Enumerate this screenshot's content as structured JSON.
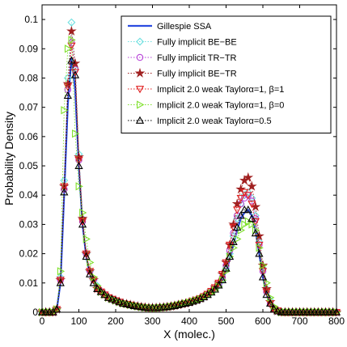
{
  "chart_data": {
    "type": "line",
    "xlabel": "X (molec.)",
    "ylabel": "Probability Density",
    "xlim": [
      0,
      800
    ],
    "ylim": [
      0,
      0.105
    ],
    "xticks": [
      "0",
      "100",
      "200",
      "300",
      "400",
      "500",
      "600",
      "700",
      "800"
    ],
    "yticks": [
      "0",
      "0.01",
      "0.02",
      "0.03",
      "0.04",
      "0.05",
      "0.06",
      "0.07",
      "0.08",
      "0.09",
      "0.1"
    ],
    "grid": false,
    "legend_position": "top-right",
    "x": [
      0,
      10,
      20,
      30,
      40,
      50,
      60,
      70,
      80,
      90,
      100,
      110,
      120,
      130,
      140,
      150,
      160,
      170,
      180,
      190,
      200,
      210,
      220,
      230,
      240,
      250,
      260,
      270,
      280,
      290,
      300,
      310,
      320,
      330,
      340,
      350,
      360,
      370,
      380,
      390,
      400,
      410,
      420,
      430,
      440,
      450,
      460,
      470,
      480,
      490,
      500,
      510,
      520,
      530,
      540,
      550,
      560,
      570,
      580,
      590,
      600,
      610,
      620,
      630,
      640,
      650,
      660,
      670,
      680,
      690,
      700,
      710,
      720,
      730,
      740,
      750,
      760,
      770,
      780,
      790,
      800
    ],
    "series": [
      {
        "name": "Gillespie SSA",
        "color": "#2b4ce0",
        "marker": "none",
        "values": [
          0,
          0,
          0,
          0,
          0.001,
          0.01,
          0.04,
          0.071,
          0.087,
          0.076,
          0.05,
          0.03,
          0.019,
          0.013,
          0.01,
          0.008,
          0.007,
          0.006,
          0.005,
          0.0045,
          0.004,
          0.0035,
          0.003,
          0.0028,
          0.0025,
          0.0022,
          0.002,
          0.0018,
          0.0017,
          0.0016,
          0.0015,
          0.0015,
          0.0016,
          0.0017,
          0.0018,
          0.002,
          0.0022,
          0.0025,
          0.0028,
          0.003,
          0.0033,
          0.0037,
          0.004,
          0.0045,
          0.005,
          0.0057,
          0.0065,
          0.0075,
          0.009,
          0.011,
          0.014,
          0.018,
          0.023,
          0.028,
          0.032,
          0.034,
          0.035,
          0.033,
          0.028,
          0.02,
          0.012,
          0.006,
          0.003,
          0.001,
          0.0005,
          0,
          0,
          0,
          0,
          0,
          0,
          0,
          0,
          0,
          0,
          0,
          0,
          0,
          0,
          0,
          0
        ]
      },
      {
        "name": "Fully implicit BE−BE",
        "color": "#6fe0e0",
        "marker": "diamond",
        "values": [
          0,
          0,
          0,
          0,
          0.001,
          0.012,
          0.045,
          0.08,
          0.099,
          0.083,
          0.054,
          0.032,
          0.02,
          0.014,
          0.011,
          0.009,
          0.007,
          0.006,
          0.005,
          0.0045,
          0.004,
          0.0035,
          0.003,
          0.0028,
          0.0024,
          0.0021,
          0.0019,
          0.0017,
          0.0016,
          0.0015,
          0.0014,
          0.0014,
          0.0015,
          0.0016,
          0.0017,
          0.0019,
          0.0021,
          0.0024,
          0.0027,
          0.003,
          0.0033,
          0.0037,
          0.0041,
          0.0046,
          0.0052,
          0.006,
          0.0068,
          0.0078,
          0.0092,
          0.011,
          0.015,
          0.02,
          0.026,
          0.032,
          0.037,
          0.04,
          0.041,
          0.039,
          0.033,
          0.024,
          0.015,
          0.008,
          0.004,
          0.0015,
          0.0005,
          0,
          0,
          0,
          0,
          0,
          0,
          0,
          0,
          0,
          0,
          0,
          0,
          0,
          0,
          0,
          0
        ]
      },
      {
        "name": "Fully implicit TR−TR",
        "color": "#b844d8",
        "marker": "circle",
        "values": [
          0,
          0,
          0,
          0,
          0.001,
          0.011,
          0.042,
          0.076,
          0.092,
          0.083,
          0.052,
          0.031,
          0.02,
          0.014,
          0.011,
          0.008,
          0.007,
          0.006,
          0.005,
          0.0045,
          0.004,
          0.0035,
          0.003,
          0.0028,
          0.0025,
          0.0022,
          0.002,
          0.0018,
          0.0016,
          0.0015,
          0.0015,
          0.0015,
          0.0016,
          0.0017,
          0.0018,
          0.002,
          0.0022,
          0.0025,
          0.0028,
          0.003,
          0.0034,
          0.0038,
          0.0042,
          0.0047,
          0.0053,
          0.006,
          0.007,
          0.008,
          0.0095,
          0.012,
          0.016,
          0.021,
          0.027,
          0.033,
          0.037,
          0.039,
          0.04,
          0.038,
          0.032,
          0.023,
          0.014,
          0.007,
          0.003,
          0.001,
          0.0005,
          0,
          0,
          0,
          0,
          0,
          0,
          0,
          0,
          0,
          0,
          0,
          0,
          0,
          0,
          0,
          0
        ]
      },
      {
        "name": "Fully implicit BE−TR",
        "color": "#a02020",
        "marker": "star",
        "values": [
          0,
          0,
          0,
          0,
          0.001,
          0.011,
          0.043,
          0.078,
          0.096,
          0.085,
          0.053,
          0.032,
          0.02,
          0.014,
          0.011,
          0.008,
          0.007,
          0.006,
          0.005,
          0.0045,
          0.004,
          0.0035,
          0.003,
          0.0028,
          0.0025,
          0.0022,
          0.002,
          0.0018,
          0.0016,
          0.0015,
          0.0015,
          0.0015,
          0.0016,
          0.0017,
          0.0018,
          0.002,
          0.0022,
          0.0025,
          0.0028,
          0.003,
          0.0034,
          0.0038,
          0.0042,
          0.0047,
          0.0054,
          0.0062,
          0.0072,
          0.0085,
          0.01,
          0.013,
          0.017,
          0.023,
          0.03,
          0.037,
          0.042,
          0.045,
          0.046,
          0.043,
          0.036,
          0.026,
          0.016,
          0.008,
          0.0035,
          0.0012,
          0.0004,
          0,
          0,
          0,
          0,
          0,
          0,
          0,
          0,
          0,
          0,
          0,
          0,
          0,
          0,
          0,
          0
        ]
      },
      {
        "name": "Implicit 2.0 weak Taylorα=1, β=1",
        "color": "#e02020",
        "marker": "triangle-down",
        "values": [
          0,
          0,
          0,
          0,
          0.001,
          0.011,
          0.043,
          0.077,
          0.091,
          0.082,
          0.052,
          0.031,
          0.02,
          0.014,
          0.011,
          0.008,
          0.007,
          0.006,
          0.005,
          0.0045,
          0.004,
          0.0035,
          0.003,
          0.0028,
          0.0025,
          0.0022,
          0.002,
          0.0018,
          0.0016,
          0.0015,
          0.0015,
          0.0015,
          0.0016,
          0.0017,
          0.0018,
          0.002,
          0.0022,
          0.0025,
          0.0028,
          0.003,
          0.0034,
          0.0038,
          0.0042,
          0.0047,
          0.0054,
          0.0062,
          0.0072,
          0.0085,
          0.01,
          0.013,
          0.017,
          0.023,
          0.029,
          0.035,
          0.039,
          0.041,
          0.04,
          0.037,
          0.031,
          0.023,
          0.014,
          0.007,
          0.003,
          0.001,
          0.0005,
          0,
          0,
          0,
          0,
          0,
          0,
          0,
          0,
          0,
          0,
          0,
          0,
          0,
          0,
          0,
          0
        ]
      },
      {
        "name": "Implicit 2.0 weak Taylorα=1, β=0",
        "color": "#7ee02a",
        "marker": "triangle-right",
        "values": [
          0,
          0,
          0,
          0,
          0.001,
          0.014,
          0.069,
          0.09,
          0.093,
          0.061,
          0.043,
          0.034,
          0.025,
          0.017,
          0.012,
          0.009,
          0.007,
          0.006,
          0.005,
          0.0045,
          0.004,
          0.0035,
          0.003,
          0.0028,
          0.0025,
          0.0022,
          0.002,
          0.0018,
          0.0016,
          0.0015,
          0.0014,
          0.0014,
          0.0015,
          0.0016,
          0.0017,
          0.0019,
          0.0021,
          0.0024,
          0.0027,
          0.003,
          0.0033,
          0.0037,
          0.004,
          0.0045,
          0.005,
          0.0057,
          0.0065,
          0.0075,
          0.0088,
          0.011,
          0.014,
          0.019,
          0.022,
          0.025,
          0.028,
          0.03,
          0.031,
          0.03,
          0.028,
          0.022,
          0.016,
          0.01,
          0.005,
          0.002,
          0.0007,
          0,
          0,
          0,
          0,
          0,
          0,
          0,
          0,
          0,
          0,
          0,
          0,
          0,
          0,
          0,
          0
        ]
      },
      {
        "name": "Implicit 2.0 weak Taylorα=0.5",
        "color": "#000000",
        "marker": "triangle-up",
        "values": [
          0,
          0,
          0,
          0,
          0.001,
          0.01,
          0.041,
          0.074,
          0.086,
          0.081,
          0.05,
          0.03,
          0.019,
          0.013,
          0.01,
          0.008,
          0.007,
          0.006,
          0.005,
          0.0045,
          0.004,
          0.0035,
          0.003,
          0.0028,
          0.0025,
          0.0022,
          0.002,
          0.0018,
          0.0016,
          0.0015,
          0.0015,
          0.0015,
          0.0016,
          0.0017,
          0.0018,
          0.002,
          0.0022,
          0.0025,
          0.0028,
          0.003,
          0.0033,
          0.0037,
          0.0041,
          0.0046,
          0.0052,
          0.006,
          0.0068,
          0.0078,
          0.0092,
          0.011,
          0.015,
          0.019,
          0.024,
          0.029,
          0.033,
          0.035,
          0.035,
          0.032,
          0.027,
          0.02,
          0.012,
          0.006,
          0.003,
          0.001,
          0.0004,
          0,
          0,
          0,
          0,
          0,
          0,
          0,
          0,
          0,
          0,
          0,
          0,
          0,
          0,
          0,
          0
        ]
      }
    ]
  }
}
